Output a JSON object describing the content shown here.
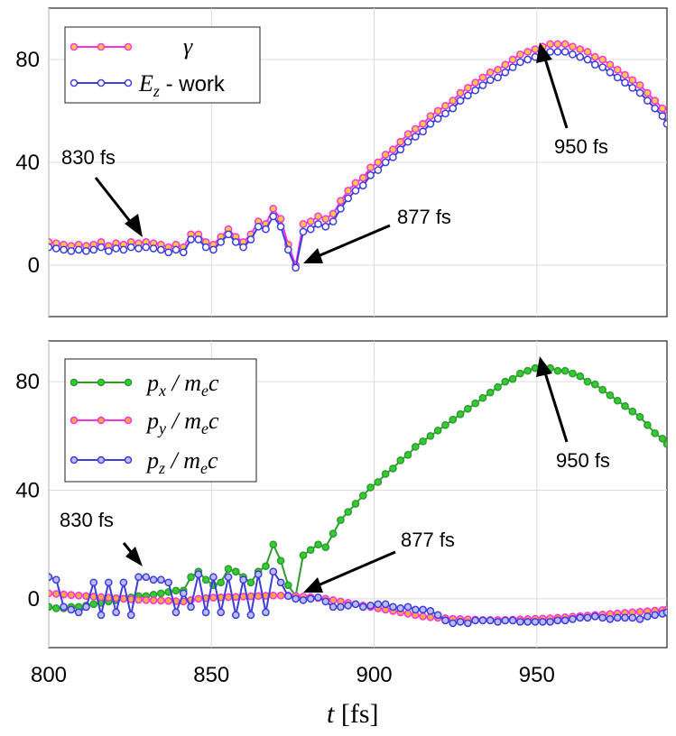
{
  "chart_data": [
    {
      "type": "line",
      "panel": "top",
      "xlim": [
        800,
        990
      ],
      "ylim": [
        -20,
        100
      ],
      "grid": true,
      "xticks": [
        800,
        850,
        900,
        950
      ],
      "yticks": [
        0,
        40,
        80
      ],
      "ytick_labels": [
        "0",
        "40",
        "80"
      ],
      "legend_position": "top-left",
      "x": [
        800,
        802.3,
        804.6,
        806.9,
        809.2,
        811.5,
        813.8,
        816.1,
        818.4,
        820.7,
        823,
        825.3,
        827.6,
        829.9,
        832.2,
        834.5,
        836.8,
        839.1,
        841.4,
        843.7,
        846,
        848.3,
        850.6,
        852.9,
        855.2,
        857.5,
        859.8,
        862.1,
        864.4,
        866.7,
        869,
        871.3,
        873.6,
        875.9,
        878.2,
        880.5,
        882.8,
        885.1,
        887.4,
        889.7,
        892,
        894.3,
        896.6,
        898.9,
        901.2,
        903.5,
        905.8,
        908.1,
        910.4,
        912.7,
        915,
        917.3,
        919.6,
        921.9,
        924.2,
        926.5,
        928.8,
        931.1,
        933.4,
        935.7,
        938,
        940.3,
        942.6,
        944.9,
        947.2,
        949.5,
        951.8,
        954.1,
        956.4,
        958.7,
        961,
        963.3,
        965.6,
        967.9,
        970.2,
        972.5,
        974.8,
        977.1,
        979.4,
        981.7,
        984,
        986.3,
        988.6,
        990
      ],
      "series": [
        {
          "name": "γ",
          "legend_main": "γ",
          "legend_sub": "",
          "legend_suffix": "",
          "color": "#ff33dd",
          "marker_color": "#ffcc44",
          "values": [
            9,
            8.5,
            8,
            7.5,
            8,
            7.5,
            8,
            9,
            7.5,
            8.5,
            8,
            9,
            8.5,
            9,
            8.5,
            8,
            7,
            8,
            7,
            12,
            12,
            9,
            8,
            11,
            14,
            11,
            9,
            12,
            17,
            16,
            22,
            18,
            8,
            0,
            16,
            17,
            19,
            18,
            20,
            25,
            29,
            32,
            34,
            38,
            40,
            43,
            45,
            48,
            51,
            53,
            55,
            58,
            60,
            62,
            64,
            67,
            69,
            71,
            73,
            75,
            76,
            78,
            80,
            82,
            83,
            84,
            85,
            86,
            86,
            86,
            85,
            84,
            83,
            81,
            80,
            78,
            76,
            74,
            72,
            70,
            67,
            64,
            61,
            58
          ]
        },
        {
          "name": "Ez - work",
          "legend_main": "E",
          "legend_sub": "z",
          "legend_suffix": " - work",
          "color": "#3d3ddb",
          "marker_color": "#ffffff",
          "values": [
            7,
            6.5,
            6,
            5.5,
            6,
            5.5,
            6,
            7,
            5.5,
            6.5,
            6,
            7,
            6.5,
            7,
            6.5,
            6,
            5,
            6,
            5,
            10,
            10,
            7,
            6,
            9,
            12,
            9,
            7,
            10,
            15,
            14,
            19,
            15,
            6,
            -1,
            13,
            14,
            16,
            15,
            17,
            22,
            26,
            29,
            31,
            35,
            37,
            40,
            42,
            45,
            48,
            50,
            52,
            55,
            57,
            59,
            61,
            64,
            66,
            68,
            70,
            72,
            73,
            75,
            77,
            79,
            80,
            81,
            82,
            83,
            83,
            83,
            82,
            81,
            80,
            78,
            77,
            75,
            73,
            71,
            69,
            67,
            64,
            61,
            58,
            55
          ]
        }
      ],
      "annotations": [
        {
          "text": "830 fs",
          "x": 830,
          "y": 8
        },
        {
          "text": "877 fs",
          "x": 877,
          "y": -1
        },
        {
          "text": "950 fs",
          "x": 950,
          "y": 81
        }
      ]
    },
    {
      "type": "line",
      "panel": "bottom",
      "xlim": [
        800,
        990
      ],
      "ylim": [
        -18,
        95
      ],
      "grid": true,
      "xticks": [
        800,
        850,
        900,
        950
      ],
      "xtick_labels": [
        "800",
        "850",
        "900",
        "950"
      ],
      "yticks": [
        0,
        40,
        80
      ],
      "ytick_labels": [
        "0",
        "40",
        "80"
      ],
      "xlabel_main": "t",
      "xlabel_unit": " [fs]",
      "legend_position": "top-left",
      "x": [
        800,
        802.3,
        804.6,
        806.9,
        809.2,
        811.5,
        813.8,
        816.1,
        818.4,
        820.7,
        823,
        825.3,
        827.6,
        829.9,
        832.2,
        834.5,
        836.8,
        839.1,
        841.4,
        843.7,
        846,
        848.3,
        850.6,
        852.9,
        855.2,
        857.5,
        859.8,
        862.1,
        864.4,
        866.7,
        869,
        871.3,
        873.6,
        875.9,
        878.2,
        880.5,
        882.8,
        885.1,
        887.4,
        889.7,
        892,
        894.3,
        896.6,
        898.9,
        901.2,
        903.5,
        905.8,
        908.1,
        910.4,
        912.7,
        915,
        917.3,
        919.6,
        921.9,
        924.2,
        926.5,
        928.8,
        931.1,
        933.4,
        935.7,
        938,
        940.3,
        942.6,
        944.9,
        947.2,
        949.5,
        951.8,
        954.1,
        956.4,
        958.7,
        961,
        963.3,
        965.6,
        967.9,
        970.2,
        972.5,
        974.8,
        977.1,
        979.4,
        981.7,
        984,
        986.3,
        988.6,
        990
      ],
      "series": [
        {
          "name": "px / mec",
          "legend_main": "p",
          "legend_sub": "x",
          "legend_suffix": " / m",
          "legend_sub2": "e",
          "legend_tail": "c",
          "color": "#2e9c2e",
          "marker_color": "#33cc33",
          "values": [
            -3,
            -3.5,
            -3.5,
            -3,
            -3,
            -2.5,
            -2,
            -1.5,
            -1,
            -0.5,
            0,
            0.5,
            1,
            1,
            1.5,
            2,
            2.5,
            3,
            3,
            8,
            10,
            7,
            5,
            6,
            11,
            10,
            8,
            6,
            10,
            12,
            20,
            14,
            5,
            1,
            16,
            18,
            20,
            19,
            24,
            29,
            32,
            35,
            38,
            41,
            43,
            46,
            48,
            51,
            53,
            56,
            58,
            60,
            62,
            64,
            66,
            68,
            70,
            72,
            74,
            76,
            78,
            80,
            81,
            83,
            84,
            85,
            85,
            85,
            84,
            84,
            83,
            82,
            80,
            79,
            77,
            75,
            73,
            71,
            69,
            67,
            64,
            61,
            59,
            57
          ]
        },
        {
          "name": "py / mec",
          "legend_main": "p",
          "legend_sub": "y",
          "legend_suffix": " / m",
          "legend_sub2": "e",
          "legend_tail": "c",
          "color": "#ff33dd",
          "marker_color": "#ffaa44",
          "values": [
            2,
            1.8,
            1.6,
            1.4,
            1.2,
            1,
            0.8,
            0.6,
            0.4,
            0.2,
            0,
            -0.2,
            -0.4,
            -0.5,
            -0.6,
            -0.7,
            -0.8,
            -0.9,
            -1,
            -0.5,
            0,
            0.2,
            0.4,
            0.5,
            0.6,
            0.7,
            0.8,
            0.9,
            1,
            1.1,
            1.2,
            1.2,
            1.2,
            1,
            0.8,
            0.6,
            0.3,
            0,
            -0.5,
            -1,
            -1.5,
            -2,
            -2.5,
            -3,
            -3.5,
            -4,
            -4.5,
            -5,
            -5.5,
            -6,
            -6.5,
            -6.8,
            -7,
            -7.2,
            -7.4,
            -7.5,
            -7.6,
            -7.7,
            -7.8,
            -7.8,
            -7.8,
            -7.8,
            -7.7,
            -7.6,
            -7.5,
            -7.4,
            -7.3,
            -7.2,
            -7,
            -6.8,
            -6.6,
            -6.4,
            -6.2,
            -6,
            -5.8,
            -5.6,
            -5.4,
            -5.2,
            -5,
            -4.8,
            -4.6,
            -4.4,
            -4.2,
            -4
          ]
        },
        {
          "name": "pz / mec",
          "legend_main": "p",
          "legend_sub": "z",
          "legend_suffix": " / m",
          "legend_sub2": "e",
          "legend_tail": "c",
          "color": "#3d3ddb",
          "marker_color": "#bbbbff",
          "values": [
            8,
            7,
            -3,
            -4,
            -5,
            -3,
            6,
            -6,
            6,
            -5,
            6,
            -6,
            8,
            8,
            7,
            7,
            6,
            -5,
            2,
            -3,
            9,
            -5,
            8,
            -5,
            8,
            -6,
            7,
            -6,
            9,
            -5,
            10,
            6,
            1,
            0,
            -0.5,
            0,
            0.5,
            -1,
            -3,
            -3,
            -2.5,
            -2,
            -3,
            -2.5,
            -2,
            -2,
            -3,
            -3.5,
            -3,
            -4,
            -4,
            -4.5,
            -6,
            -8,
            -9,
            -8.5,
            -9,
            -8,
            -8,
            -8,
            -8.5,
            -8,
            -8,
            -8.5,
            -8.5,
            -8.5,
            -8.5,
            -8.5,
            -8,
            -8,
            -7.5,
            -7,
            -7,
            -6.5,
            -7,
            -7.5,
            -7,
            -7,
            -7,
            -7.5,
            -6.5,
            -6,
            -5.5,
            -5
          ]
        }
      ],
      "annotations": [
        {
          "text": "830 fs",
          "x": 830,
          "y": 8
        },
        {
          "text": "877 fs",
          "x": 877,
          "y": 2
        },
        {
          "text": "950 fs",
          "x": 950,
          "y": 85
        }
      ]
    }
  ]
}
